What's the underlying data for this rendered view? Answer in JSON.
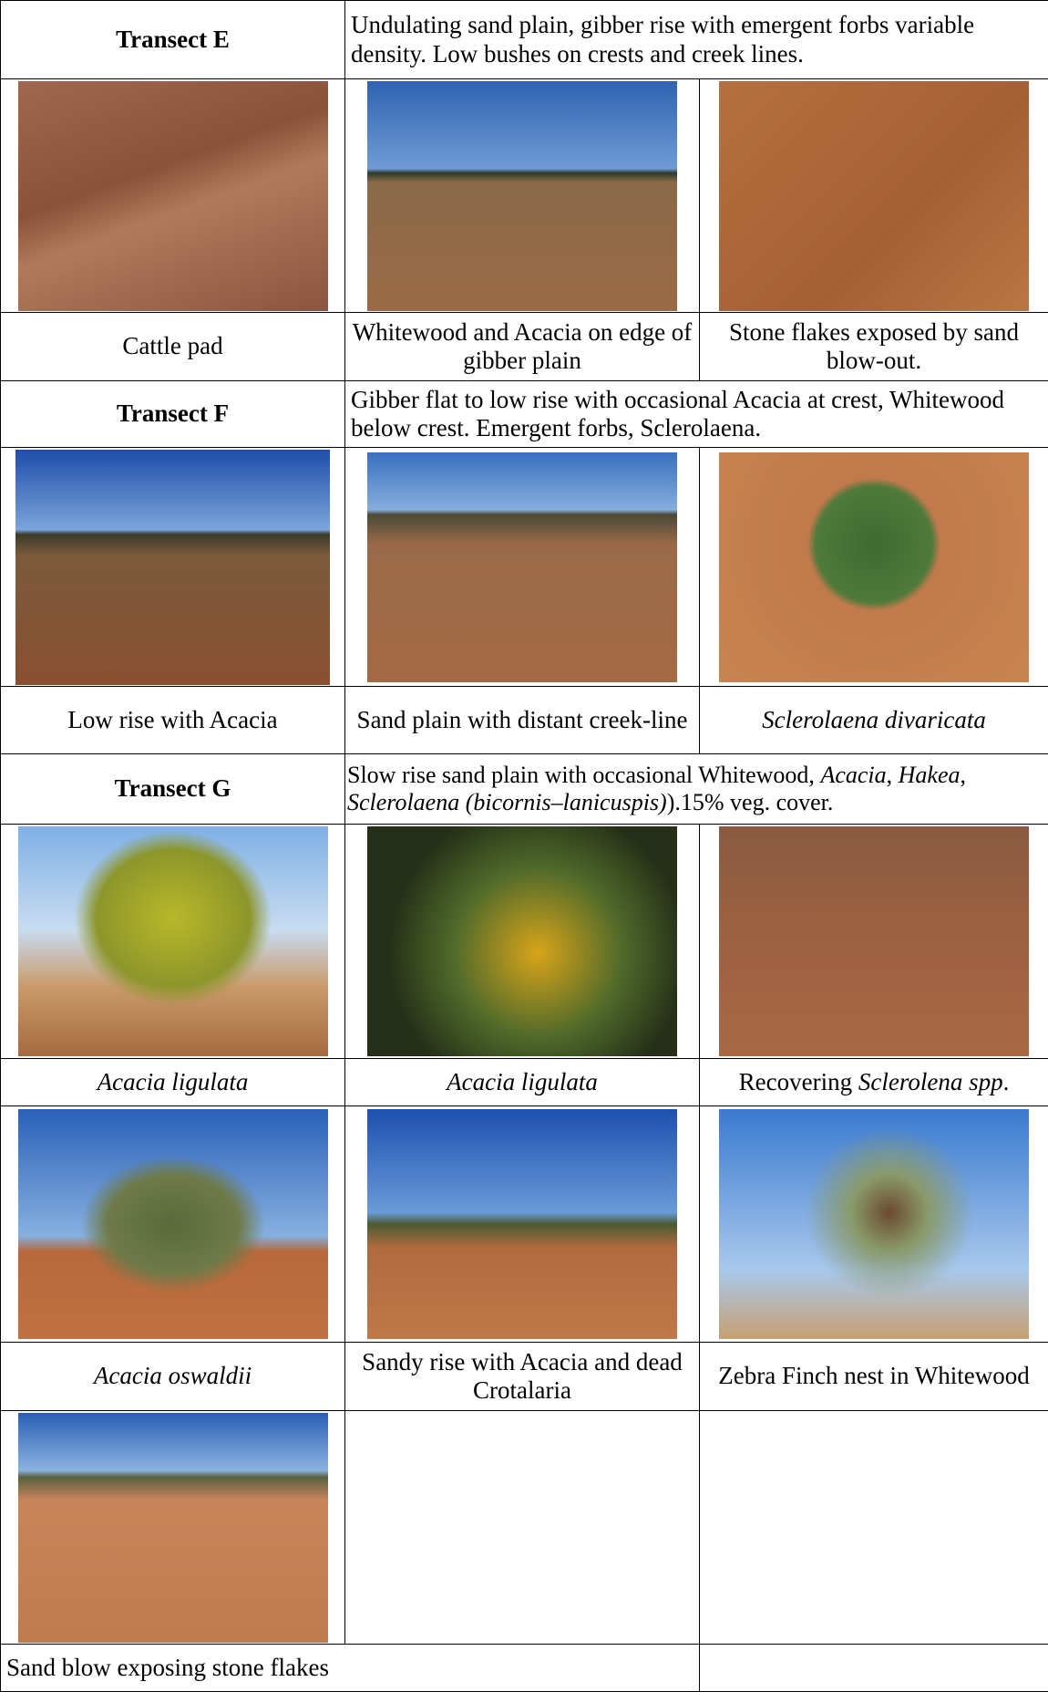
{
  "transects": [
    {
      "title": "Transect E",
      "description": [
        "Undulating sand plain, gibber rise with emergent forbs variable density. Low bushes on crests and creek lines."
      ],
      "caption_rows": [
        [
          [
            "Cattle pad"
          ],
          [
            "Whitewood and Acacia on edge of gibber plain"
          ],
          [
            "Stone flakes exposed by sand blow-out."
          ]
        ]
      ]
    },
    {
      "title": "Transect F",
      "description": [
        "Gibber flat to low rise with occasional Acacia at crest, Whitewood below crest. Emergent forbs, Sclerolaena."
      ],
      "caption_rows": [
        [
          [
            "Low rise with Acacia"
          ],
          [
            "Sand plain with distant creek-line"
          ],
          [
            "Sclerolaena divaricata"
          ]
        ]
      ]
    },
    {
      "title": "Transect G",
      "description": [
        "Slow rise sand plain with occasional Whitewood, ",
        "Acacia",
        ", ",
        "Hakea",
        ", ",
        "Sclerolaena (bicornis–lanicuspis)",
        ").15% veg. cover."
      ],
      "caption_rows": [
        [
          [
            "Acacia ligulata"
          ],
          [
            "Acacia ligulata"
          ],
          [
            "Recovering ",
            "Sclerolena spp",
            "."
          ]
        ],
        [
          [
            "Acacia oswaldii"
          ],
          [
            "Sandy rise with Acacia and dead Crotalaria"
          ],
          [
            "Zebra Finch nest in Whitewood"
          ]
        ],
        [
          [
            "Sand blow exposing stone flakes"
          ]
        ]
      ]
    }
  ]
}
